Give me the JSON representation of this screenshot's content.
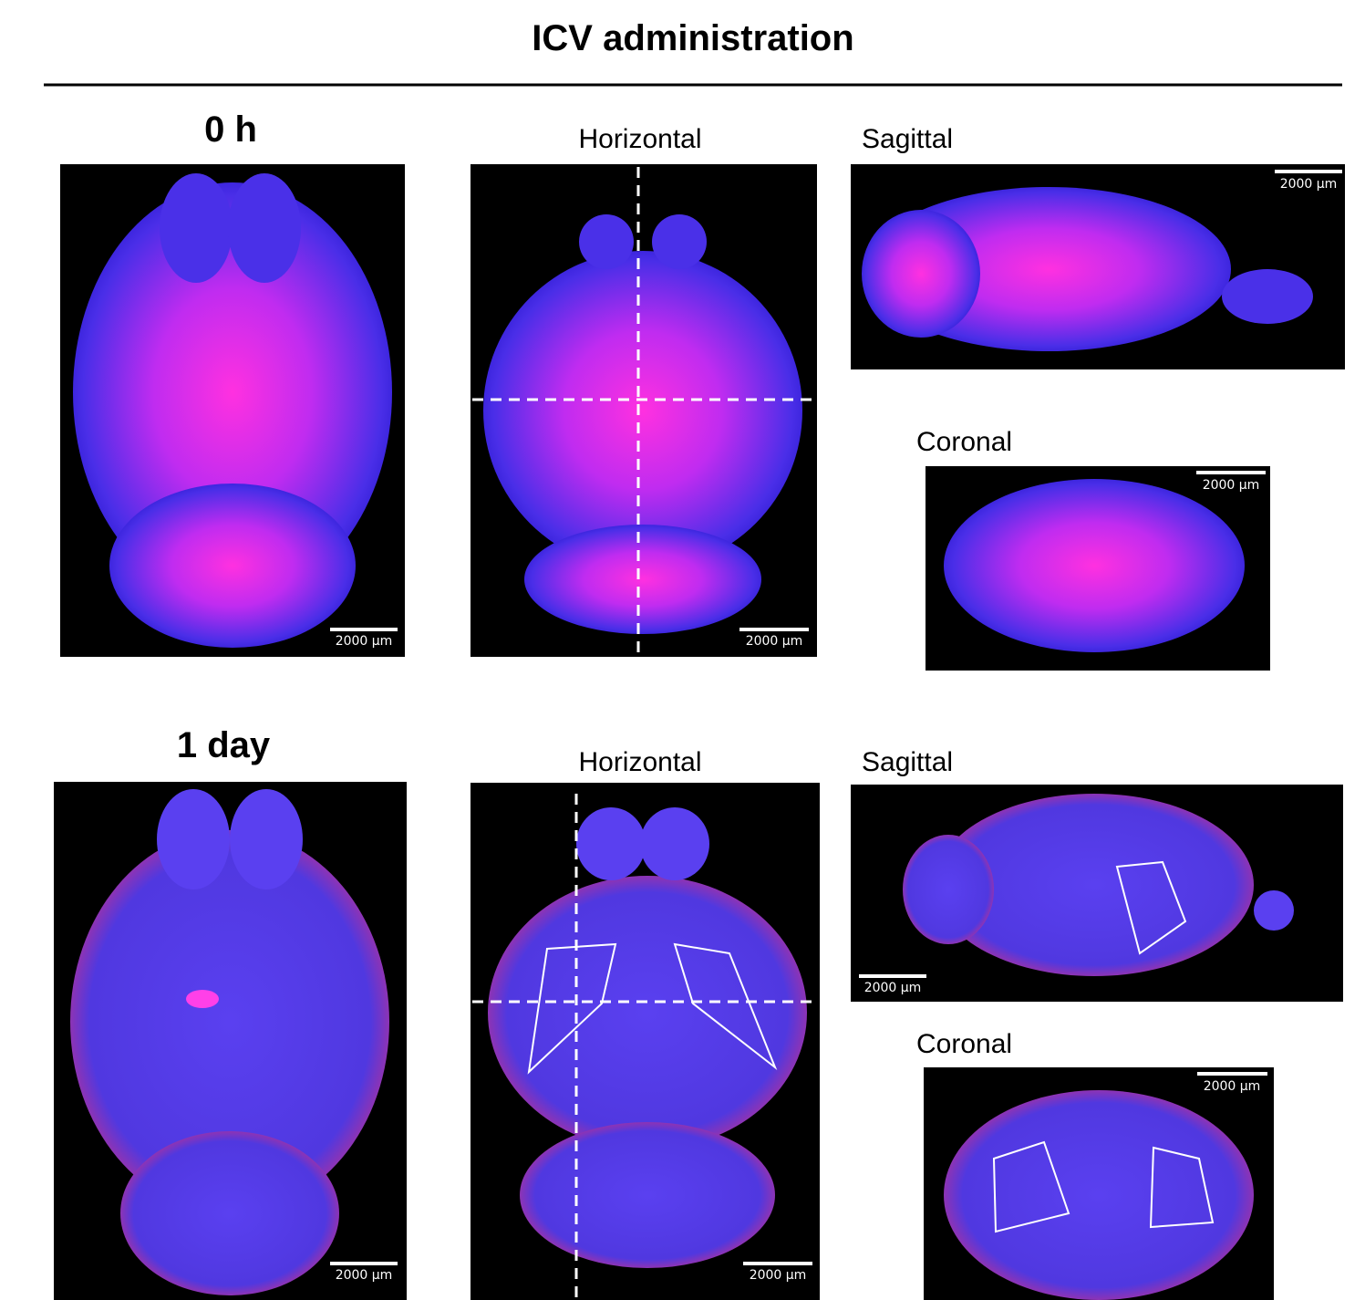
{
  "header": {
    "title": "ICV administration"
  },
  "rows": [
    {
      "label": "0 h",
      "panels": [
        {
          "scale_bar": "2000 μm"
        },
        {
          "title": "Horizontal",
          "scale_bar": "2000 μm"
        },
        {
          "title": "Sagittal",
          "scale_bar": "2000 μm"
        },
        {
          "title": "Coronal",
          "scale_bar": "2000 μm"
        }
      ]
    },
    {
      "label": "1 day",
      "panels": [
        {
          "scale_bar": "2000 μm"
        },
        {
          "title": "Horizontal",
          "scale_bar": "2000 μm"
        },
        {
          "title": "Sagittal",
          "scale_bar": "2000 μm"
        },
        {
          "title": "Coronal",
          "scale_bar": "2000 μm"
        }
      ]
    }
  ]
}
